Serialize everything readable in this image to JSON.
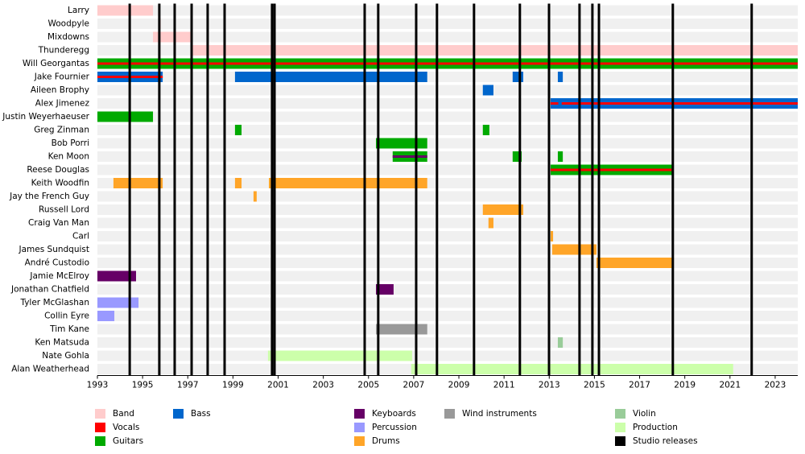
{
  "chart_data": {
    "type": "timeline",
    "xlim": [
      1993,
      2024
    ],
    "xticks": [
      1993,
      1995,
      1997,
      1999,
      2001,
      2003,
      2005,
      2007,
      2009,
      2011,
      2013,
      2015,
      2017,
      2019,
      2021,
      2023
    ],
    "legend": [
      {
        "name": "Band",
        "color": "#ffcccc"
      },
      {
        "name": "Vocals",
        "color": "#ff0000"
      },
      {
        "name": "Guitars",
        "color": "#00aa00"
      },
      {
        "name": "Bass",
        "color": "#0066cc"
      },
      {
        "name": "Keyboards",
        "color": "#660066"
      },
      {
        "name": "Percussion",
        "color": "#9999ff"
      },
      {
        "name": "Drums",
        "color": "#ffa528"
      },
      {
        "name": "Wind instruments",
        "color": "#999999"
      },
      {
        "name": "Violin",
        "color": "#99cc99"
      },
      {
        "name": "Production",
        "color": "#ccffaa"
      },
      {
        "name": "Studio releases",
        "color": "#000000"
      }
    ],
    "studio_releases": [
      1994.43,
      1995.74,
      1996.42,
      1997.17,
      1997.88,
      1998.63,
      2000.73,
      2000.84,
      2004.83,
      2005.43,
      2007.11,
      2008.03,
      2009.67,
      2011.7,
      2012.99,
      2014.34,
      2014.91,
      2015.2,
      2018.47,
      2021.96
    ],
    "rows": [
      {
        "name": "Larry",
        "segments": [
          {
            "role": "Band",
            "start": 1993,
            "end": 1995.46
          }
        ]
      },
      {
        "name": "Woodpyle",
        "segments": [
          {
            "role": "Band",
            "start": 1995.7,
            "end": 1995.8
          }
        ]
      },
      {
        "name": "Mixdowns",
        "segments": [
          {
            "role": "Band",
            "start": 1995.46,
            "end": 1997.17
          }
        ]
      },
      {
        "name": "Thunderegg",
        "segments": [
          {
            "role": "Band",
            "start": 1997.17,
            "end": 2024
          }
        ]
      },
      {
        "name": "Will Georgantas",
        "segments": [
          {
            "role": "Guitars",
            "start": 1993,
            "end": 2024
          },
          {
            "role": "Vocals",
            "start": 1993,
            "end": 2024
          }
        ]
      },
      {
        "name": "Jake Fournier",
        "segments": [
          {
            "role": "Bass",
            "start": 1993,
            "end": 1995.89
          },
          {
            "role": "Vocals",
            "start": 1993,
            "end": 1995.89
          },
          {
            "role": "Bass",
            "start": 1999.09,
            "end": 2007.6
          },
          {
            "role": "Bass",
            "start": 2011.38,
            "end": 2011.85
          },
          {
            "role": "Bass",
            "start": 2013.38,
            "end": 2013.6
          }
        ]
      },
      {
        "name": "Aileen Brophy",
        "segments": [
          {
            "role": "Bass",
            "start": 2010.06,
            "end": 2010.53
          }
        ]
      },
      {
        "name": "Alex Jimenez",
        "segments": [
          {
            "role": "Bass",
            "start": 2013.06,
            "end": 2024
          },
          {
            "role": "Vocals",
            "start": 2013.06,
            "end": 2013.4
          },
          {
            "role": "Vocals",
            "start": 2013.55,
            "end": 2024
          }
        ]
      },
      {
        "name": "Justin Weyerhaeuser",
        "segments": [
          {
            "role": "Guitars",
            "start": 1993,
            "end": 1995.46
          }
        ]
      },
      {
        "name": "Greg Zinman",
        "segments": [
          {
            "role": "Guitars",
            "start": 1999.09,
            "end": 1999.38
          },
          {
            "role": "Guitars",
            "start": 2010.06,
            "end": 2010.35
          }
        ]
      },
      {
        "name": "Bob Porri",
        "segments": [
          {
            "role": "Guitars",
            "start": 2005.33,
            "end": 2007.6
          }
        ]
      },
      {
        "name": "Ken Moon",
        "segments": [
          {
            "role": "Guitars",
            "start": 2006.07,
            "end": 2007.6
          },
          {
            "role": "Keyboards",
            "start": 2006.07,
            "end": 2007.6
          },
          {
            "role": "Guitars",
            "start": 2011.38,
            "end": 2011.78
          },
          {
            "role": "Guitars",
            "start": 2013.38,
            "end": 2013.6
          }
        ]
      },
      {
        "name": "Reese Douglas",
        "segments": [
          {
            "role": "Guitars",
            "start": 2013.06,
            "end": 2018.5
          },
          {
            "role": "Vocals",
            "start": 2013.06,
            "end": 2018.5
          }
        ]
      },
      {
        "name": "Keith Woodfin",
        "segments": [
          {
            "role": "Drums",
            "start": 1993.71,
            "end": 1995.89
          },
          {
            "role": "Drums",
            "start": 1999.09,
            "end": 1999.38
          },
          {
            "role": "Drums",
            "start": 2000.59,
            "end": 2007.6
          }
        ]
      },
      {
        "name": "Jay the French Guy",
        "segments": [
          {
            "role": "Drums",
            "start": 1999.91,
            "end": 2000.05
          }
        ]
      },
      {
        "name": "Russell Lord",
        "segments": [
          {
            "role": "Drums",
            "start": 2010.06,
            "end": 2011.85
          }
        ]
      },
      {
        "name": "Craig Van Man",
        "segments": [
          {
            "role": "Drums",
            "start": 2010.31,
            "end": 2010.53
          }
        ]
      },
      {
        "name": "Carl",
        "segments": [
          {
            "role": "Drums",
            "start": 2013.06,
            "end": 2013.17
          }
        ]
      },
      {
        "name": "James Sundquist",
        "segments": [
          {
            "role": "Drums",
            "start": 2013.13,
            "end": 2015.09
          }
        ]
      },
      {
        "name": "André Custodio",
        "segments": [
          {
            "role": "Drums",
            "start": 2015.09,
            "end": 2018.5
          }
        ]
      },
      {
        "name": "Jamie McElroy",
        "segments": [
          {
            "role": "Keyboards",
            "start": 1993,
            "end": 1994.71
          }
        ]
      },
      {
        "name": "Jonathan Chatfield",
        "segments": [
          {
            "role": "Keyboards",
            "start": 2005.33,
            "end": 2006.11
          }
        ]
      },
      {
        "name": "Tyler McGlashan",
        "segments": [
          {
            "role": "Percussion",
            "start": 1993,
            "end": 1994.82
          }
        ]
      },
      {
        "name": "Collin Eyre",
        "segments": [
          {
            "role": "Percussion",
            "start": 1993,
            "end": 1993.75
          }
        ]
      },
      {
        "name": "Tim Kane",
        "segments": [
          {
            "role": "Wind instruments",
            "start": 2005.33,
            "end": 2007.6
          }
        ]
      },
      {
        "name": "Ken Matsuda",
        "segments": [
          {
            "role": "Violin",
            "start": 2013.38,
            "end": 2013.6
          }
        ]
      },
      {
        "name": "Nate Gohla",
        "segments": [
          {
            "role": "Production",
            "start": 2000.55,
            "end": 2006.93
          }
        ]
      },
      {
        "name": "Alan Weatherhead",
        "segments": [
          {
            "role": "Production",
            "start": 2006.89,
            "end": 2021.14
          }
        ]
      }
    ]
  }
}
